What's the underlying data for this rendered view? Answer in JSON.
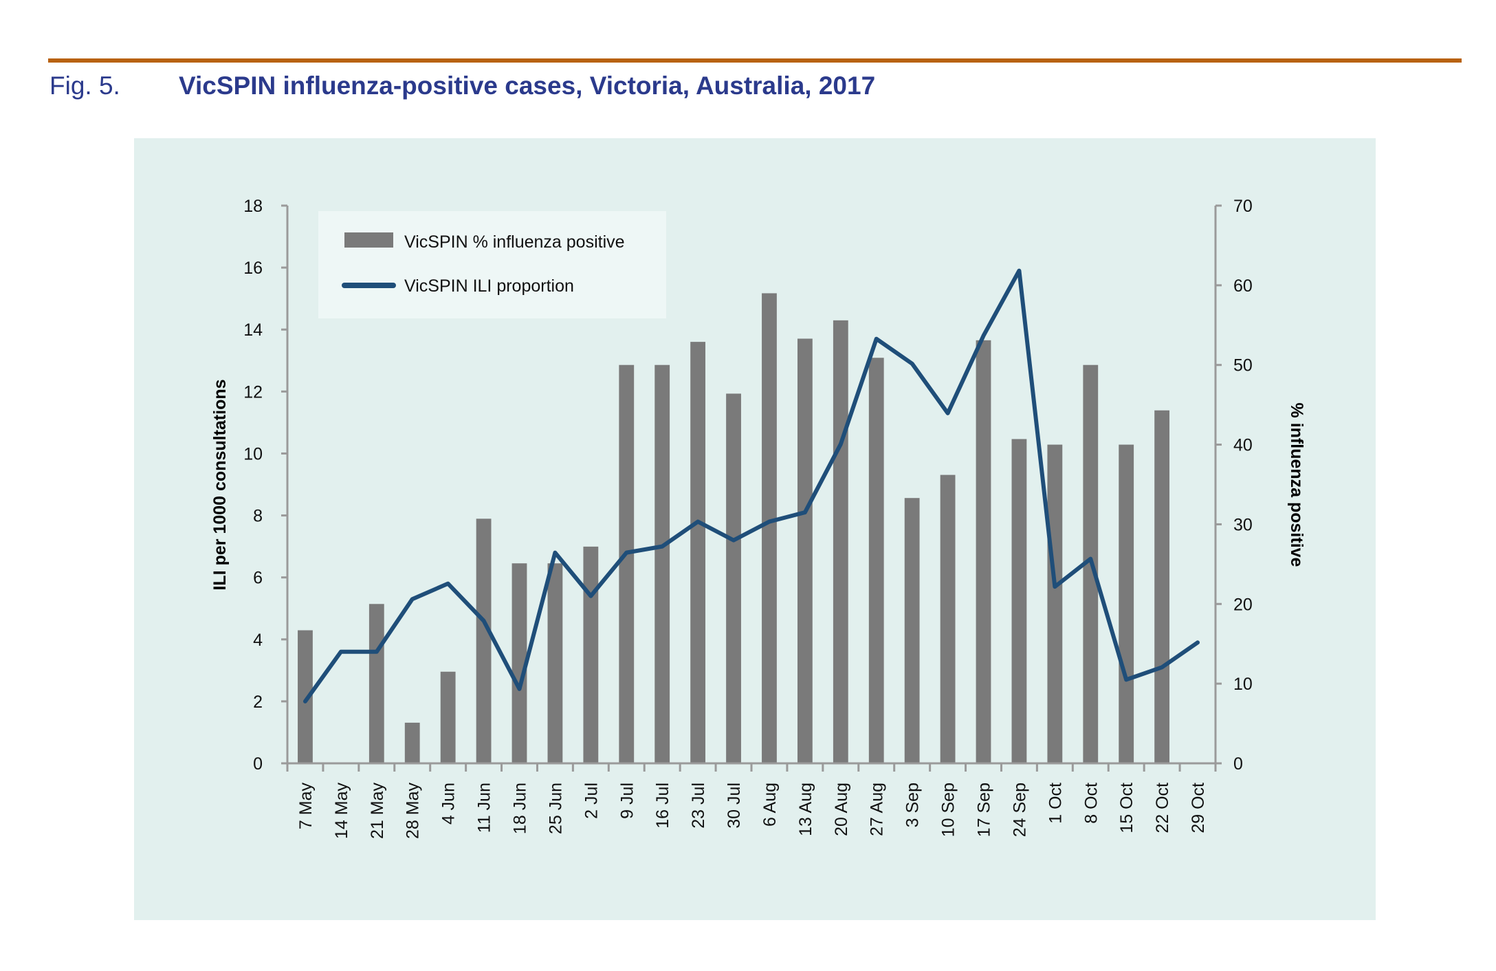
{
  "figure": {
    "label": "Fig. 5.",
    "title": "VicSPIN influenza-positive cases, Victoria, Australia, 2017",
    "rule_color": "#b8620e",
    "title_color": "#2b3a8c",
    "panel_color": "#e2f0ee"
  },
  "chart_data": {
    "type": "bar",
    "title": "VicSPIN influenza-positive cases, Victoria, Australia, 2017",
    "categories": [
      "7 May",
      "14 May",
      "21 May",
      "28 May",
      "4 Jun",
      "11 Jun",
      "18 Jun",
      "25 Jun",
      "2 Jul",
      "9 Jul",
      "16 Jul",
      "23 Jul",
      "30 Jul",
      "6 Aug",
      "13 Aug",
      "20 Aug",
      "27 Aug",
      "3 Sep",
      "10 Sep",
      "17 Sep",
      "24 Sep",
      "1 Oct",
      "8 Oct",
      "15 Oct",
      "22 Oct",
      "29 Oct"
    ],
    "xlabel": "",
    "ylabel": "ILI per 1000 consultations",
    "y2label": "% influenza positive",
    "ylim": [
      0,
      18
    ],
    "y2lim": [
      0,
      70
    ],
    "yticks": [
      0,
      2,
      4,
      6,
      8,
      10,
      12,
      14,
      16,
      18
    ],
    "y2ticks": [
      0,
      10,
      20,
      30,
      40,
      50,
      60,
      70
    ],
    "grid": false,
    "legend_position": "top-left",
    "series": [
      {
        "name": "VicSPIN % influenza positive",
        "type": "bar",
        "axis": "right",
        "color": "#7a7a7a",
        "values": [
          16.7,
          0,
          20.0,
          5.1,
          11.5,
          30.7,
          25.1,
          25.1,
          27.2,
          50.0,
          50.0,
          52.9,
          46.4,
          59.0,
          53.3,
          55.6,
          50.9,
          33.3,
          36.2,
          53.1,
          40.7,
          40.0,
          50.0,
          40.0,
          44.3,
          0
        ]
      },
      {
        "name": "VicSPIN ILI proportion",
        "type": "line",
        "axis": "left",
        "color": "#1f4e79",
        "values": [
          2.0,
          3.6,
          3.6,
          5.3,
          5.8,
          4.6,
          2.4,
          6.8,
          5.4,
          6.8,
          7.0,
          7.8,
          7.2,
          7.8,
          8.1,
          10.3,
          13.7,
          12.9,
          11.3,
          13.8,
          15.9,
          5.7,
          6.6,
          2.7,
          3.1,
          3.9
        ]
      }
    ]
  }
}
